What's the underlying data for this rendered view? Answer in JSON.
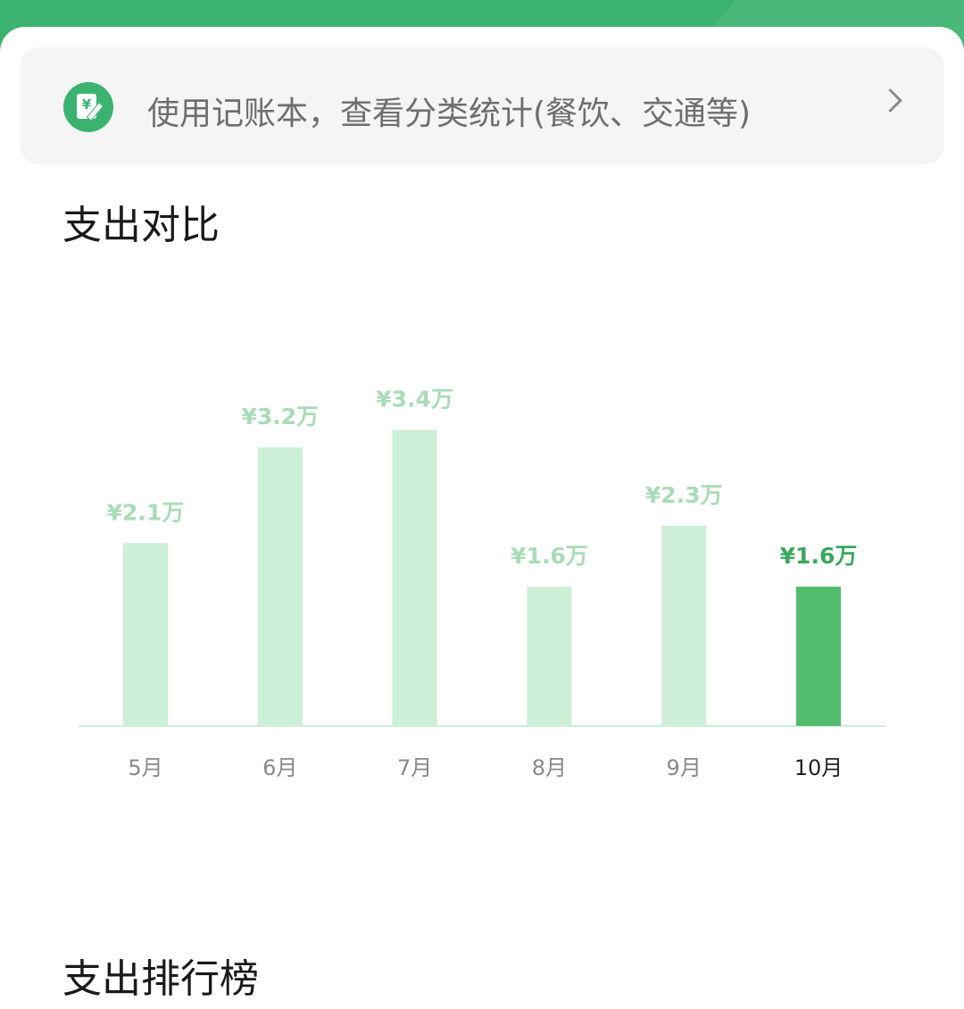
{
  "banner": {
    "text": "使用记账本，查看分类统计(餐饮、交通等)",
    "icon": "ledger-yen-icon",
    "icon_glyph": "¥"
  },
  "section_title": "支出对比",
  "next_section_title": "支出排行榜",
  "colors": {
    "brand": "#3bb26f",
    "bar_inactive": "#cdeed7",
    "bar_active": "#52bd6d",
    "label_inactive": "#a8dcb6",
    "label_active": "#3aa85d"
  },
  "chart_data": {
    "type": "bar",
    "categories": [
      "5月",
      "6月",
      "7月",
      "8月",
      "9月",
      "10月"
    ],
    "values": [
      2.1,
      3.2,
      3.4,
      1.6,
      2.3,
      1.6
    ],
    "labels": [
      "¥2.1万",
      "¥3.2万",
      "¥3.4万",
      "¥1.6万",
      "¥2.3万",
      "¥1.6万"
    ],
    "unit": "万",
    "highlighted_index": 5,
    "grid": false
  }
}
